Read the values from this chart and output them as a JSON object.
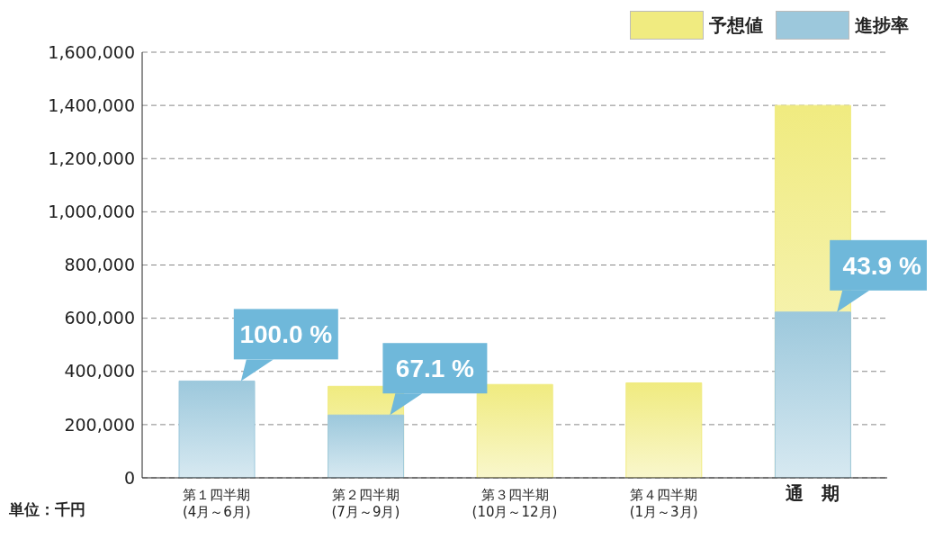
{
  "chart_data": {
    "type": "bar",
    "categories": [
      "第１四半期\n(4月～6月)",
      "第２四半期\n(7月～9月)",
      "第３四半期\n(10月～12月)",
      "第４四半期\n(1月～3月)",
      "通　期"
    ],
    "series": [
      {
        "name": "予想値",
        "color": "#f0eb80",
        "values": [
          null,
          344000,
          351000,
          357000,
          1400000
        ]
      },
      {
        "name": "進捗率",
        "color": "#9cc8dc",
        "values": [
          364000,
          236000,
          null,
          null,
          623000
        ]
      }
    ],
    "ylim": [
      0,
      1600000
    ],
    "yticks": [
      {
        "value": 0,
        "label": "0"
      },
      {
        "value": 200000,
        "label": "200,000"
      },
      {
        "value": 400000,
        "label": "400,000"
      },
      {
        "value": 600000,
        "label": "600,000"
      },
      {
        "value": 800000,
        "label": "800,000"
      },
      {
        "value": 1000000,
        "label": "1,000,000"
      },
      {
        "value": 1200000,
        "label": "1,200,000"
      },
      {
        "value": 1400000,
        "label": "1,400,000"
      },
      {
        "value": 1600000,
        "label": "1,600,000"
      }
    ],
    "grid": "y",
    "legend": "top right",
    "annotations": [
      "単位：千円",
      {
        "text": "100.0 %",
        "x": "第１四半期\n(4月～6月)",
        "y": 364000
      },
      {
        "text": "67.1 %",
        "x": "第２四半期\n(7月～9月)",
        "y": 236000
      },
      {
        "text": "43.9 %",
        "x": "通　期",
        "y": 623000
      }
    ]
  }
}
